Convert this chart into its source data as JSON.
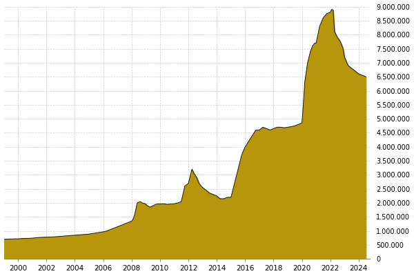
{
  "fill_color": "#B8960C",
  "line_color": "#1a1a1a",
  "background_color": "#ffffff",
  "grid_color": "#cccccc",
  "ylim": [
    0,
    9000000
  ],
  "yticks": [
    0,
    500000,
    1000000,
    1500000,
    2000000,
    2500000,
    3000000,
    3500000,
    4000000,
    4500000,
    5000000,
    5500000,
    6000000,
    6500000,
    7000000,
    7500000,
    8000000,
    8500000,
    9000000
  ],
  "ytick_labels": [
    "0",
    "500.000",
    "1.000.000",
    "1.500.000",
    "2.000.000",
    "2.500.000",
    "3.000.000",
    "3.500.000",
    "4.000.000",
    "4.500.000",
    "5.000.000",
    "5.500.000",
    "6.000.000",
    "6.500.000",
    "7.000.000",
    "7.500.000",
    "8.000.000",
    "8.500.000",
    "9.000.000"
  ],
  "xticks": [
    2000,
    2002,
    2004,
    2006,
    2008,
    2010,
    2012,
    2014,
    2016,
    2018,
    2020,
    2022,
    2024
  ],
  "years": [
    1999.0,
    1999.25,
    1999.5,
    1999.75,
    2000.0,
    2000.25,
    2000.5,
    2000.75,
    2001.0,
    2001.25,
    2001.5,
    2001.75,
    2002.0,
    2002.25,
    2002.5,
    2002.75,
    2003.0,
    2003.25,
    2003.5,
    2003.75,
    2004.0,
    2004.25,
    2004.5,
    2004.75,
    2005.0,
    2005.25,
    2005.5,
    2005.75,
    2006.0,
    2006.25,
    2006.5,
    2006.75,
    2007.0,
    2007.25,
    2007.5,
    2007.75,
    2008.0,
    2008.1,
    2008.2,
    2008.4,
    2008.6,
    2008.75,
    2008.9,
    2009.0,
    2009.1,
    2009.3,
    2009.5,
    2009.7,
    2009.9,
    2010.0,
    2010.25,
    2010.5,
    2010.75,
    2011.0,
    2011.25,
    2011.5,
    2011.75,
    2012.0,
    2012.1,
    2012.2,
    2012.25,
    2012.4,
    2012.6,
    2012.75,
    2012.9,
    2013.0,
    2013.25,
    2013.5,
    2013.75,
    2014.0,
    2014.1,
    2014.25,
    2014.5,
    2014.75,
    2015.0,
    2015.25,
    2015.5,
    2015.75,
    2016.0,
    2016.25,
    2016.5,
    2016.75,
    2017.0,
    2017.25,
    2017.5,
    2017.75,
    2018.0,
    2018.25,
    2018.5,
    2018.75,
    2019.0,
    2019.25,
    2019.5,
    2019.75,
    2020.0,
    2020.1,
    2020.2,
    2020.4,
    2020.6,
    2020.75,
    2020.9,
    2021.0,
    2021.25,
    2021.5,
    2021.75,
    2022.0,
    2022.1,
    2022.2,
    2022.3,
    2022.5,
    2022.65,
    2022.75,
    2022.9,
    2023.0,
    2023.25,
    2023.5,
    2023.75,
    2024.0,
    2024.5
  ],
  "values": [
    700000,
    710000,
    715000,
    720000,
    720000,
    730000,
    735000,
    740000,
    745000,
    760000,
    770000,
    775000,
    780000,
    785000,
    790000,
    800000,
    810000,
    820000,
    830000,
    840000,
    850000,
    860000,
    870000,
    880000,
    890000,
    910000,
    930000,
    950000,
    970000,
    1000000,
    1050000,
    1100000,
    1150000,
    1200000,
    1250000,
    1300000,
    1350000,
    1420000,
    1550000,
    2000000,
    2050000,
    2000000,
    1980000,
    1960000,
    1900000,
    1850000,
    1900000,
    1950000,
    1970000,
    1960000,
    1970000,
    1950000,
    1960000,
    1970000,
    2000000,
    2050000,
    2600000,
    2700000,
    2900000,
    3100000,
    3200000,
    3050000,
    2900000,
    2700000,
    2600000,
    2550000,
    2450000,
    2350000,
    2300000,
    2250000,
    2200000,
    2150000,
    2150000,
    2200000,
    2200000,
    2700000,
    3200000,
    3700000,
    4000000,
    4200000,
    4400000,
    4600000,
    4600000,
    4700000,
    4650000,
    4600000,
    4650000,
    4700000,
    4700000,
    4680000,
    4700000,
    4720000,
    4750000,
    4800000,
    4850000,
    5500000,
    6300000,
    7000000,
    7400000,
    7600000,
    7700000,
    7700000,
    8300000,
    8600000,
    8750000,
    8800000,
    8900000,
    8870000,
    8100000,
    7900000,
    7800000,
    7700000,
    7500000,
    7200000,
    6900000,
    6800000,
    6700000,
    6600000,
    6500000
  ]
}
